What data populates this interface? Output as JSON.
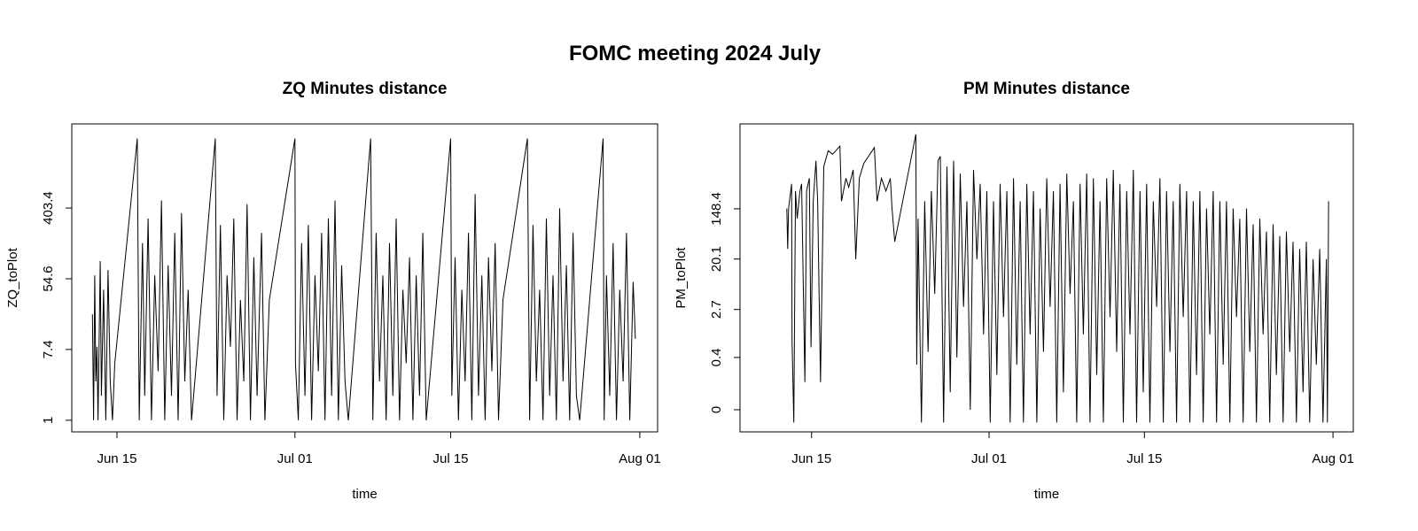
{
  "title": "FOMC meeting 2024 July",
  "chart_data": [
    {
      "type": "line",
      "title": "ZQ Minutes distance",
      "xlabel": "time",
      "ylabel": "ZQ_toPlot",
      "color": "#000000",
      "log_y": true,
      "xlim": [
        10.94,
        63.6
      ],
      "ylim": [
        0.72,
        4350
      ],
      "xticks": [
        {
          "value": 15,
          "label": "Jun 15"
        },
        {
          "value": 31,
          "label": "Jul 01"
        },
        {
          "value": 45,
          "label": "Jul 15"
        },
        {
          "value": 62,
          "label": "Aug 01"
        }
      ],
      "yticks": [
        1,
        7.4,
        54.6,
        403.4
      ],
      "x": [
        12.8,
        12.9,
        13.0,
        13.1,
        13.2,
        13.3,
        13.5,
        13.6,
        13.8,
        14.0,
        14.2,
        14.4,
        14.6,
        14.8,
        16.83,
        17.0,
        17.3,
        17.5,
        17.8,
        18.1,
        18.4,
        18.7,
        19.0,
        19.3,
        19.6,
        19.9,
        20.2,
        20.5,
        20.8,
        21.1,
        21.4,
        21.7,
        23.84,
        24.0,
        24.3,
        24.6,
        24.9,
        25.2,
        25.5,
        25.8,
        26.1,
        26.4,
        26.7,
        27.0,
        27.3,
        27.6,
        28.0,
        28.3,
        28.7,
        31.0,
        31.05,
        31.3,
        31.6,
        31.9,
        32.2,
        32.5,
        32.8,
        33.1,
        33.4,
        33.7,
        34.0,
        34.3,
        34.6,
        34.9,
        35.2,
        35.5,
        35.8,
        37.8,
        38.0,
        38.3,
        38.6,
        38.9,
        39.2,
        39.5,
        39.8,
        40.1,
        40.4,
        40.7,
        41.0,
        41.3,
        41.6,
        41.9,
        42.2,
        42.5,
        42.8,
        45.0,
        45.1,
        45.4,
        45.7,
        46.0,
        46.3,
        46.6,
        46.9,
        47.2,
        47.5,
        47.8,
        48.1,
        48.4,
        48.7,
        49.0,
        49.3,
        49.7,
        51.9,
        52.1,
        52.4,
        52.7,
        53.0,
        53.3,
        53.6,
        53.9,
        54.2,
        54.5,
        54.8,
        55.1,
        55.4,
        55.7,
        56.0,
        56.3,
        56.6,
        58.7,
        58.8,
        59.0,
        59.3,
        59.6,
        59.9,
        60.2,
        60.5,
        60.8,
        61.1,
        61.4,
        61.6
      ],
      "values": [
        20,
        1,
        60,
        3,
        8,
        1,
        90,
        2,
        40,
        1,
        70,
        3,
        1,
        5,
        2880,
        1,
        150,
        2,
        300,
        1,
        60,
        4,
        500,
        1,
        80,
        2,
        200,
        1,
        350,
        3,
        40,
        1,
        2880,
        2,
        250,
        1,
        60,
        8,
        300,
        1,
        30,
        3,
        450,
        1,
        100,
        2,
        200,
        1,
        30,
        2880,
        5,
        1,
        150,
        2,
        250,
        1,
        60,
        4,
        200,
        1,
        300,
        2,
        500,
        1,
        80,
        3,
        1,
        2880,
        1,
        200,
        3,
        60,
        1,
        150,
        2,
        300,
        1,
        40,
        5,
        100,
        1,
        60,
        2,
        200,
        1,
        2880,
        2,
        100,
        1,
        40,
        3,
        200,
        1,
        600,
        2,
        60,
        1,
        100,
        4,
        150,
        1,
        30,
        2880,
        1,
        250,
        3,
        40,
        1,
        300,
        2,
        60,
        1,
        400,
        3,
        80,
        1,
        200,
        2,
        1,
        2880,
        1,
        60,
        2,
        150,
        1,
        40,
        3,
        200,
        1,
        50,
        10
      ]
    },
    {
      "type": "line",
      "title": "PM Minutes distance",
      "xlabel": "time",
      "ylabel": "PM_toPlot",
      "color": "#000000",
      "log_y": true,
      "xlim": [
        8.55,
        63.83
      ],
      "ylim": [
        0.0207,
        4350
      ],
      "xticks": [
        {
          "value": 15,
          "label": "Jun 15"
        },
        {
          "value": 31,
          "label": "Jul 01"
        },
        {
          "value": 45,
          "label": "Jul 15"
        },
        {
          "value": 62,
          "label": "Aug 01"
        }
      ],
      "yticks": [
        {
          "value": 0.05,
          "label": "0"
        },
        0.4,
        2.7,
        20.1,
        148.4
      ],
      "x": [
        12.77,
        12.85,
        12.93,
        13.2,
        13.24,
        13.4,
        13.55,
        13.7,
        13.95,
        14.1,
        14.4,
        14.55,
        14.8,
        14.95,
        15.15,
        15.4,
        15.55,
        15.8,
        16.1,
        16.5,
        16.9,
        17.55,
        17.7,
        18.1,
        18.35,
        18.75,
        18.98,
        19.3,
        19.7,
        20.66,
        20.9,
        21.3,
        21.7,
        22.1,
        22.25,
        22.5,
        24.4,
        24.48,
        24.6,
        24.9,
        25.2,
        25.5,
        25.8,
        26.1,
        26.4,
        26.6,
        26.9,
        27.2,
        27.5,
        27.8,
        28.1,
        28.4,
        28.7,
        29.0,
        29.3,
        29.6,
        29.9,
        30.2,
        30.5,
        30.8,
        31.1,
        31.4,
        31.7,
        32.0,
        32.3,
        32.6,
        32.9,
        33.2,
        33.5,
        33.8,
        34.1,
        34.4,
        34.7,
        35.0,
        35.3,
        35.6,
        35.9,
        36.2,
        36.5,
        36.8,
        37.1,
        37.4,
        37.7,
        38.0,
        38.3,
        38.6,
        38.9,
        39.2,
        39.5,
        39.8,
        40.1,
        40.4,
        40.7,
        41.0,
        41.3,
        41.6,
        41.9,
        42.2,
        42.5,
        42.8,
        43.1,
        43.4,
        43.7,
        44.0,
        44.3,
        44.6,
        44.9,
        45.2,
        45.5,
        45.8,
        46.1,
        46.4,
        46.7,
        47.0,
        47.3,
        47.6,
        47.9,
        48.2,
        48.5,
        48.8,
        49.1,
        49.4,
        49.7,
        50.0,
        50.3,
        50.6,
        50.9,
        51.2,
        51.5,
        51.8,
        52.1,
        52.4,
        52.7,
        53.0,
        53.3,
        53.6,
        53.9,
        54.2,
        54.5,
        54.8,
        55.1,
        55.4,
        55.7,
        56.0,
        56.3,
        56.6,
        56.9,
        57.2,
        57.5,
        57.8,
        58.1,
        58.4,
        58.7,
        59.0,
        59.3,
        59.6,
        59.9,
        60.2,
        60.5,
        60.8,
        61.1,
        61.4,
        61.5,
        61.6
      ],
      "values": [
        150,
        30,
        150,
        400,
        0.8,
        0.03,
        300,
        100,
        300,
        400,
        0.15,
        300,
        500,
        0.6,
        200,
        1000,
        200,
        0.15,
        800,
        1500,
        1300,
        1800,
        200,
        500,
        350,
        700,
        20,
        500,
        900,
        1700,
        200,
        500,
        300,
        500,
        150,
        40,
        2880,
        0.3,
        100,
        0.03,
        200,
        0.5,
        300,
        5,
        1000,
        1200,
        0.03,
        800,
        0.1,
        1000,
        0.4,
        600,
        3,
        200,
        0.05,
        700,
        20,
        400,
        1,
        300,
        0.03,
        200,
        0.2,
        400,
        2,
        300,
        0.03,
        500,
        0.3,
        200,
        0.03,
        400,
        1,
        300,
        0.03,
        150,
        0.5,
        500,
        3,
        300,
        0.03,
        400,
        0.1,
        600,
        5,
        200,
        0.03,
        400,
        1,
        600,
        0.03,
        500,
        0.2,
        200,
        0.03,
        500,
        2,
        700,
        0.5,
        400,
        0.03,
        300,
        1,
        700,
        0.03,
        300,
        0.1,
        400,
        0.03,
        200,
        3,
        500,
        0.03,
        300,
        0.5,
        200,
        0.03,
        400,
        2,
        300,
        0.03,
        200,
        0.2,
        300,
        0.03,
        150,
        1,
        300,
        0.03,
        200,
        0.3,
        200,
        0.03,
        150,
        2,
        100,
        0.03,
        150,
        0.5,
        80,
        0.03,
        100,
        1,
        60,
        0.03,
        80,
        0.2,
        50,
        0.03,
        60,
        0.5,
        40,
        0.03,
        30,
        0.1,
        40,
        0.03,
        20,
        0.3,
        30,
        0.03,
        20,
        0.03,
        200
      ]
    }
  ]
}
